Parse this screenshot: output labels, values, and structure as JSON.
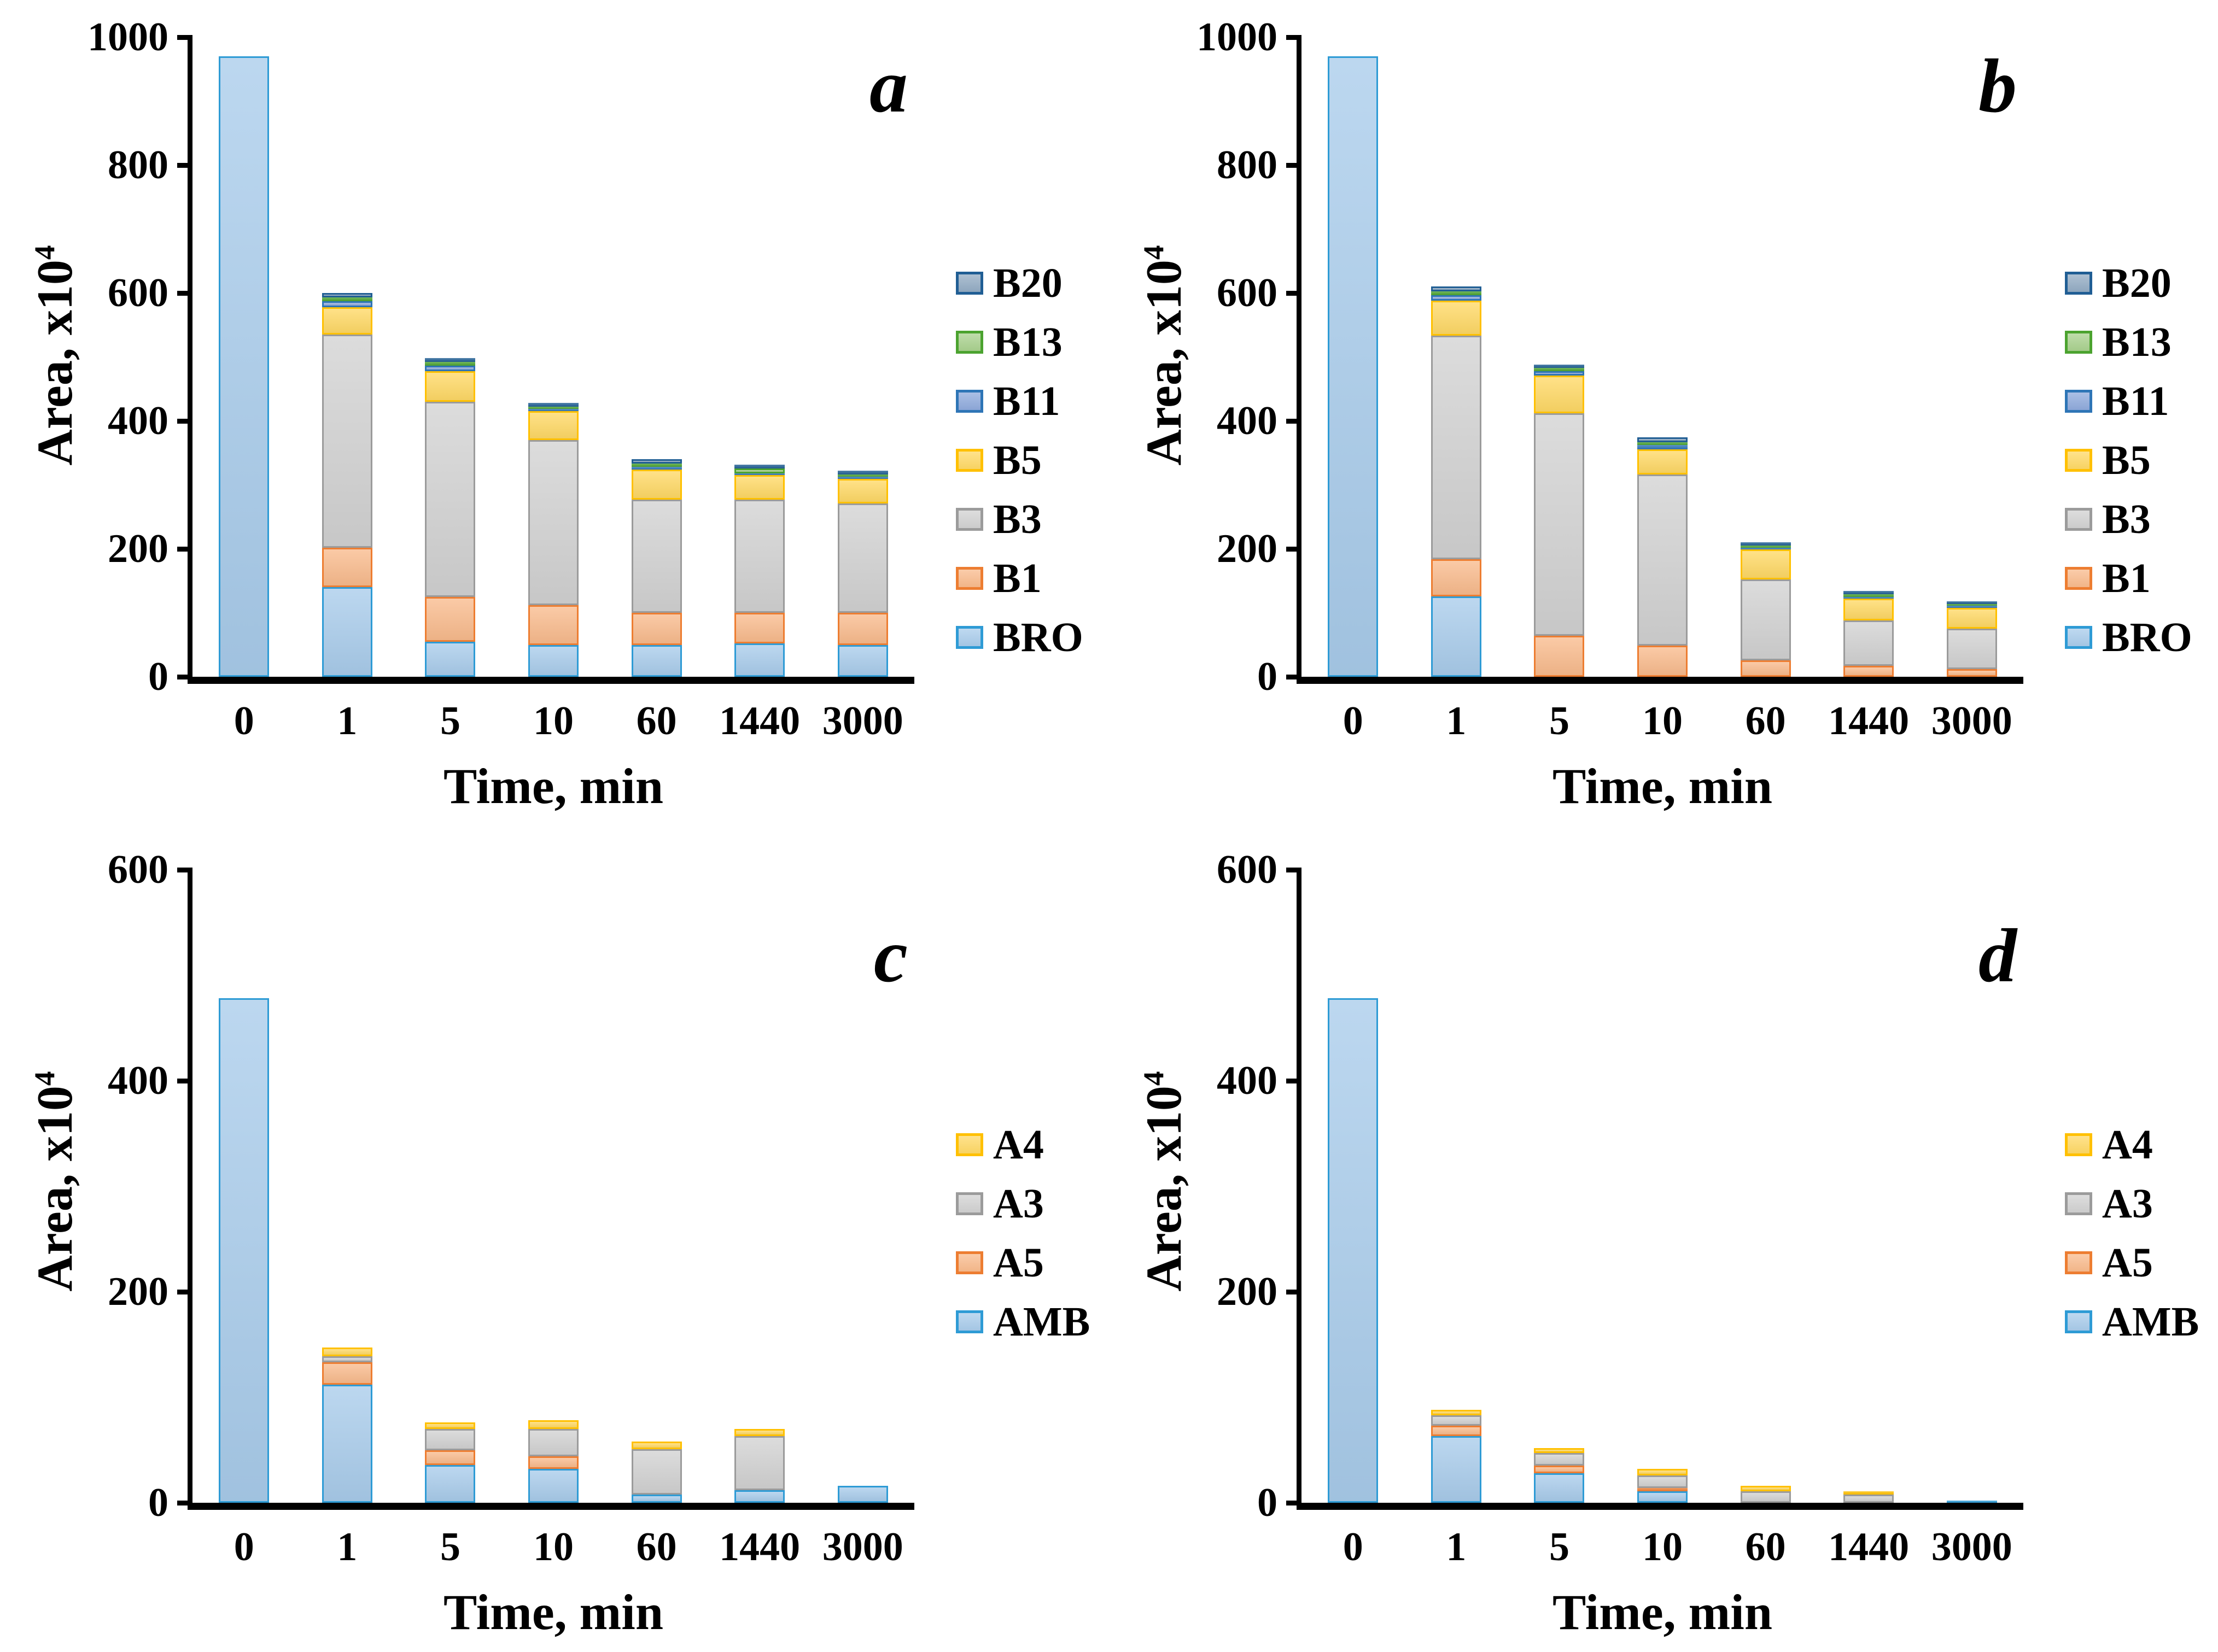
{
  "axes": {
    "y_title": "Area, x10",
    "y_title_sup": "4",
    "x_title": "Time, min"
  },
  "chart_data": [
    {
      "type": "bar",
      "stacked": true,
      "panel_label": "a",
      "xlabel": "Time, min",
      "ylabel": "Area, x10^4",
      "categories": [
        "0",
        "1",
        "5",
        "10",
        "60",
        "1440",
        "3000"
      ],
      "ylim": [
        0,
        1000
      ],
      "yticks": [
        0,
        200,
        400,
        600,
        800,
        1000
      ],
      "grid": false,
      "legend_position": "right",
      "series": [
        {
          "name": "BRO",
          "fill": "#A9CCEB",
          "border": "#2E9BD5",
          "values": [
            970,
            140,
            55,
            50,
            50,
            52,
            50
          ]
        },
        {
          "name": "B1",
          "fill": "#F9BB8D",
          "border": "#ED7D31",
          "values": [
            0,
            62,
            70,
            62,
            50,
            48,
            50
          ]
        },
        {
          "name": "B3",
          "fill": "#D2D2D2",
          "border": "#9B9B9B",
          "values": [
            0,
            333,
            305,
            258,
            177,
            177,
            171
          ]
        },
        {
          "name": "B5",
          "fill": "#FFD966",
          "border": "#FFC000",
          "values": [
            0,
            43,
            48,
            45,
            47,
            38,
            38
          ]
        },
        {
          "name": "B11",
          "fill": "#8FAADC",
          "border": "#2E75B6",
          "values": [
            0,
            9,
            8,
            4,
            4,
            3,
            4
          ]
        },
        {
          "name": "B13",
          "fill": "#A9D18E",
          "border": "#4BA32F",
          "values": [
            0,
            6,
            6,
            3,
            5,
            8,
            3
          ]
        },
        {
          "name": "B20",
          "fill": "#92ABC3",
          "border": "#205E94",
          "values": [
            0,
            7,
            6,
            6,
            7,
            6,
            6
          ]
        }
      ],
      "legend": [
        "B20",
        "B13",
        "B11",
        "B5",
        "B3",
        "B1",
        "BRO"
      ]
    },
    {
      "type": "bar",
      "stacked": true,
      "panel_label": "b",
      "xlabel": "Time, min",
      "ylabel": "Area, x10^4",
      "categories": [
        "0",
        "1",
        "5",
        "10",
        "60",
        "1440",
        "3000"
      ],
      "ylim": [
        0,
        1000
      ],
      "yticks": [
        0,
        200,
        400,
        600,
        800,
        1000
      ],
      "grid": false,
      "legend_position": "right",
      "series": [
        {
          "name": "BRO",
          "fill": "#A9CCEB",
          "border": "#2E9BD5",
          "values": [
            970,
            126,
            0,
            0,
            0,
            0,
            0
          ]
        },
        {
          "name": "B1",
          "fill": "#F9BB8D",
          "border": "#ED7D31",
          "values": [
            0,
            58,
            64,
            49,
            26,
            17,
            12
          ]
        },
        {
          "name": "B3",
          "fill": "#D2D2D2",
          "border": "#9B9B9B",
          "values": [
            0,
            349,
            348,
            267,
            126,
            71,
            63
          ]
        },
        {
          "name": "B5",
          "fill": "#FFD966",
          "border": "#FFC000",
          "values": [
            0,
            55,
            59,
            40,
            47,
            34,
            33
          ]
        },
        {
          "name": "B11",
          "fill": "#8FAADC",
          "border": "#2E75B6",
          "values": [
            0,
            9,
            7,
            6,
            3,
            3,
            3
          ]
        },
        {
          "name": "B13",
          "fill": "#A9D18E",
          "border": "#4BA32F",
          "values": [
            0,
            6,
            5,
            5,
            3,
            4,
            3
          ]
        },
        {
          "name": "B20",
          "fill": "#92ABC3",
          "border": "#205E94",
          "values": [
            0,
            7,
            5,
            7,
            5,
            5,
            4
          ]
        }
      ],
      "legend": [
        "B20",
        "B13",
        "B11",
        "B5",
        "B3",
        "B1",
        "BRO"
      ]
    },
    {
      "type": "bar",
      "stacked": true,
      "panel_label": "c",
      "xlabel": "Time, min",
      "ylabel": "Area, x10^4",
      "categories": [
        "0",
        "1",
        "5",
        "10",
        "60",
        "1440",
        "3000"
      ],
      "ylim": [
        0,
        600
      ],
      "yticks": [
        0,
        200,
        400,
        600
      ],
      "grid": false,
      "legend_position": "right",
      "series": [
        {
          "name": "AMB",
          "fill": "#A9CCEB",
          "border": "#2E9BD5",
          "values": [
            478,
            112,
            36,
            32,
            8,
            12,
            16
          ]
        },
        {
          "name": "A5",
          "fill": "#F9BB8D",
          "border": "#ED7D31",
          "values": [
            0,
            21,
            14,
            12,
            0,
            0,
            0
          ]
        },
        {
          "name": "A3",
          "fill": "#D2D2D2",
          "border": "#9B9B9B",
          "values": [
            0,
            6,
            20,
            26,
            43,
            51,
            0
          ]
        },
        {
          "name": "A4",
          "fill": "#FFD966",
          "border": "#FFC000",
          "values": [
            0,
            8,
            6,
            8,
            7,
            7,
            0
          ]
        }
      ],
      "legend": [
        "A4",
        "A3",
        "A5",
        "AMB"
      ]
    },
    {
      "type": "bar",
      "stacked": true,
      "panel_label": "d",
      "xlabel": "Time, min",
      "ylabel": "Area, x10^4",
      "categories": [
        "0",
        "1",
        "5",
        "10",
        "60",
        "1440",
        "3000"
      ],
      "ylim": [
        0,
        600
      ],
      "yticks": [
        0,
        200,
        400,
        600
      ],
      "grid": false,
      "legend_position": "right",
      "series": [
        {
          "name": "AMB",
          "fill": "#A9CCEB",
          "border": "#2E9BD5",
          "values": [
            478,
            63,
            28,
            11,
            0,
            0,
            2
          ]
        },
        {
          "name": "A5",
          "fill": "#F9BB8D",
          "border": "#ED7D31",
          "values": [
            0,
            10,
            7,
            3,
            0,
            0,
            0
          ]
        },
        {
          "name": "A3",
          "fill": "#D2D2D2",
          "border": "#9B9B9B",
          "values": [
            0,
            10,
            12,
            12,
            11,
            8,
            0
          ]
        },
        {
          "name": "A4",
          "fill": "#FFD966",
          "border": "#FFC000",
          "values": [
            0,
            5,
            5,
            6,
            5,
            3,
            0
          ]
        }
      ],
      "legend": [
        "A4",
        "A3",
        "A5",
        "AMB"
      ]
    }
  ]
}
